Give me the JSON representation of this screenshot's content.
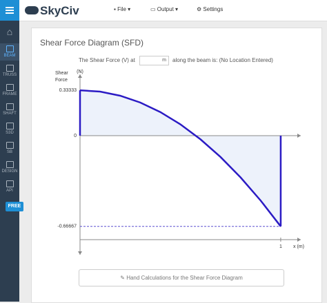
{
  "app": {
    "logo": "SkyCiv",
    "nav": [
      "File",
      "Output",
      "Settings"
    ],
    "sidebar": [
      "BEAM",
      "TRUSS",
      "FRAME",
      "SHAFT",
      "S3D",
      "SB",
      "DESIGN",
      "API"
    ],
    "badge": "FREE"
  },
  "panel": {
    "title": "Shear Force Diagram (SFD)",
    "query_prefix": "The Shear Force (V) at",
    "input_unit": "m",
    "query_suffix": "along the beam is: (No Location Entered)",
    "button": "Hand Calculations for the Shear Force Diagram"
  },
  "chart_data": {
    "type": "area",
    "y_label": [
      "Shear",
      "Force"
    ],
    "y_unit": "(N)",
    "x_label": "x  (m)",
    "color": "#2b1bc4",
    "fill": "#edf2fb",
    "x": [
      0,
      0.1,
      0.2,
      0.3,
      0.4,
      0.5,
      0.6,
      0.7,
      0.8,
      0.9,
      1
    ],
    "values": [
      0.33333,
      0.32333,
      0.29333,
      0.24333,
      0.17333,
      0.08333,
      -0.02667,
      -0.15667,
      -0.30667,
      -0.47667,
      -0.66667
    ],
    "xlim": [
      0,
      1.1
    ],
    "ylim": [
      -0.875,
      0.45
    ],
    "yticks": [
      0.33333,
      0,
      -0.66667
    ],
    "xticks": [
      1
    ]
  }
}
